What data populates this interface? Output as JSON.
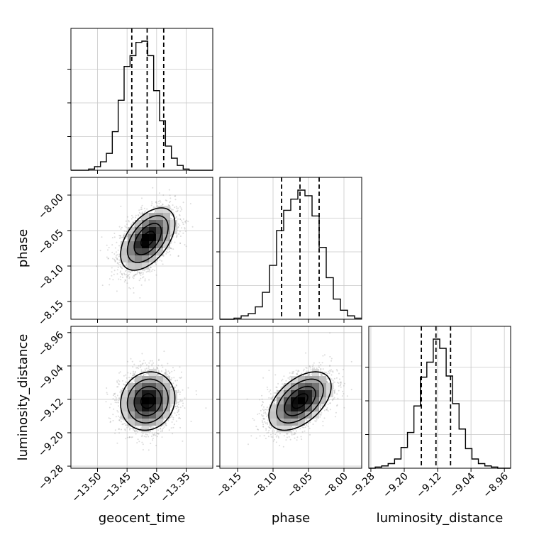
{
  "chart_data": {
    "type": "corner",
    "parameters": [
      "geocent_time",
      "phase",
      "luminosity_distance"
    ],
    "axis_labels": {
      "x": [
        "geocent_time",
        "phase",
        "luminosity_distance"
      ],
      "y": [
        "phase",
        "luminosity_distance"
      ]
    },
    "ticks": {
      "geocent_time": {
        "values": [
          -13.5,
          -13.45,
          -13.4,
          -13.35
        ],
        "labels": [
          "−13.50",
          "−13.45",
          "−13.40",
          "−13.35"
        ]
      },
      "phase": {
        "values": [
          -8.15,
          -8.1,
          -8.05,
          -8.0
        ],
        "labels": [
          "−8.15",
          "−8.10",
          "−8.05",
          "−8.00"
        ]
      },
      "luminosity_distance": {
        "values": [
          -9.28,
          -9.2,
          -9.12,
          -9.04,
          -8.96
        ],
        "labels": [
          "−9.28",
          "−9.20",
          "−9.12",
          "−9.04",
          "−8.96"
        ]
      }
    },
    "ranges": {
      "geocent_time": [
        -13.545,
        -13.305
      ],
      "phase": [
        -8.175,
        -7.975
      ],
      "luminosity_distance": [
        -9.285,
        -8.945
      ]
    },
    "quantiles": {
      "geocent_time": [
        -13.442,
        -13.416,
        -13.388
      ],
      "phase": [
        -8.088,
        -8.062,
        -8.035
      ],
      "luminosity_distance": [
        -9.159,
        -9.124,
        -9.089
      ]
    },
    "histograms": {
      "geocent_time": {
        "bins": [
          -13.545,
          -13.305
        ],
        "counts": [
          0,
          0,
          0,
          1,
          3,
          7,
          14,
          32,
          58,
          86,
          95,
          106,
          107,
          95,
          66,
          41,
          20,
          10,
          4,
          1,
          0,
          0,
          0,
          0
        ]
      },
      "phase": {
        "bins": [
          -8.175,
          -7.975
        ],
        "counts": [
          0,
          0,
          1,
          3,
          5,
          11,
          24,
          48,
          79,
          97,
          107,
          115,
          110,
          92,
          64,
          37,
          18,
          8,
          3,
          1
        ]
      },
      "luminosity_distance": {
        "bins": [
          -9.285,
          -8.945
        ],
        "counts": [
          0,
          1,
          2,
          4,
          8,
          18,
          31,
          54,
          79,
          92,
          112,
          104,
          80,
          56,
          34,
          17,
          8,
          4,
          2,
          1,
          0,
          0
        ]
      }
    },
    "joint": [
      {
        "x": "geocent_time",
        "y": "phase",
        "mean": [
          -13.415,
          -8.062
        ],
        "sd": [
          0.023,
          0.022
        ],
        "corr": 0.5
      },
      {
        "x": "geocent_time",
        "y": "luminosity_distance",
        "mean": [
          -13.415,
          -9.124
        ],
        "sd": [
          0.023,
          0.035
        ],
        "corr": 0.1
      },
      {
        "x": "phase",
        "y": "luminosity_distance",
        "mean": [
          -8.062,
          -9.124
        ],
        "sd": [
          0.022,
          0.035
        ],
        "corr": 0.5
      }
    ],
    "contour_levels_sigma": [
      0.5,
      1.0,
      1.5,
      2.0
    ],
    "grid": true,
    "colors": {
      "line": "#000000",
      "points": "#9a9a9a",
      "grid": "#c8c8c8"
    }
  }
}
